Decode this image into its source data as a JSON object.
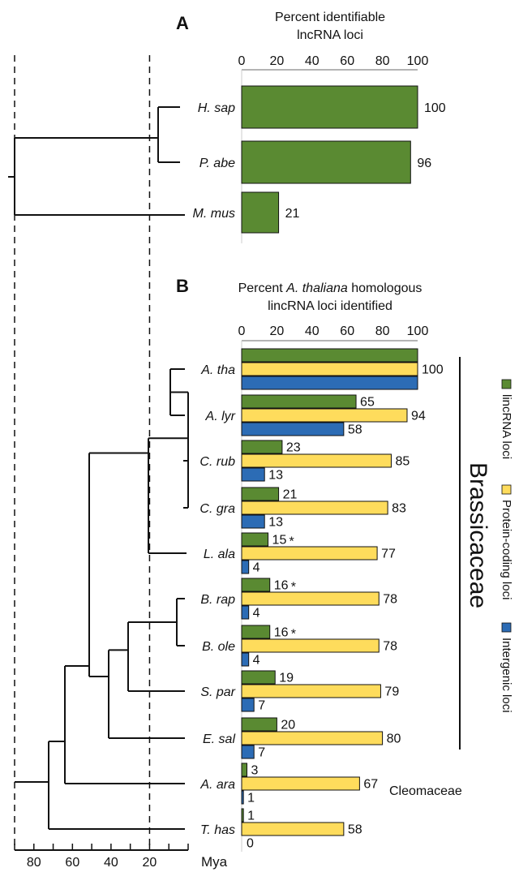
{
  "colors": {
    "lincrna": "#5a8a32",
    "protein": "#fedc5c",
    "intergenic": "#2c6cb5"
  },
  "chart_data": [
    {
      "panel": "A",
      "type": "bar",
      "orientation": "horizontal",
      "title": "Percent identifiable lncRNA loci",
      "title_lines": [
        "Percent identifiable",
        "lncRNA loci"
      ],
      "categories": [
        "H. sap",
        "P. abe",
        "M. mus"
      ],
      "series": [
        {
          "values": [
            100,
            96,
            21
          ],
          "color": "#5a8a32"
        }
      ],
      "xlim": [
        0,
        100
      ],
      "xticks": [
        "0",
        "20",
        "40",
        "60",
        "80",
        "100"
      ]
    },
    {
      "panel": "B",
      "type": "bar",
      "orientation": "horizontal",
      "title": "Percent A. thaliana homologous lincRNA loci identified",
      "title_lines": [
        {
          "pre": "Percent ",
          "ital": "A. thaliana",
          "post": " homologous"
        },
        {
          "pre": "lincRNA loci identified",
          "ital": "",
          "post": ""
        }
      ],
      "categories": [
        "A. tha",
        "A. lyr",
        "C. rub",
        "C. gra",
        "L. ala",
        "B. rap",
        "B. ole",
        "S. par",
        "E. sal",
        "A. ara",
        "T. has"
      ],
      "series": [
        {
          "name": "lincRNA loci",
          "color": "#5a8a32",
          "values": [
            100,
            65,
            23,
            21,
            15,
            16,
            16,
            19,
            20,
            3,
            1
          ],
          "labels": [
            "",
            "65",
            "23",
            "21",
            "15",
            "16",
            "16",
            "19",
            "20",
            "3",
            "1"
          ]
        },
        {
          "name": "Protein-coding loci",
          "color": "#fedc5c",
          "values": [
            100,
            94,
            85,
            83,
            77,
            78,
            78,
            79,
            80,
            67,
            58
          ],
          "labels": [
            "100",
            "94",
            "85",
            "83",
            "77",
            "78",
            "78",
            "79",
            "80",
            "67",
            "58"
          ]
        },
        {
          "name": "Intergenic loci",
          "color": "#2c6cb5",
          "values": [
            100,
            58,
            13,
            13,
            4,
            4,
            4,
            7,
            7,
            1,
            0
          ],
          "labels": [
            "",
            "58",
            "13",
            "13",
            "4",
            "4",
            "4",
            "7",
            "7",
            "1",
            "0"
          ]
        }
      ],
      "asterisk_marks": [
        "L. ala",
        "B. rap",
        "B. ole"
      ],
      "asterisk": "*",
      "xlim": [
        0,
        100
      ],
      "xticks": [
        "0",
        "20",
        "40",
        "60",
        "80",
        "100"
      ],
      "family_label": "Brassicaceae",
      "outgroup_label": "Cleomaceae",
      "legend": [
        "lincRNA loci",
        "Protein-coding loci",
        "Intergenic loci"
      ],
      "legend_placement": "right, rotated vertical"
    }
  ],
  "time_axis": {
    "label": "Mya",
    "ticks": [
      "80",
      "60",
      "40",
      "20"
    ],
    "values": [
      80,
      60,
      40,
      20
    ],
    "range": [
      90,
      0
    ],
    "reference_lines_mya": [
      90,
      20
    ]
  }
}
